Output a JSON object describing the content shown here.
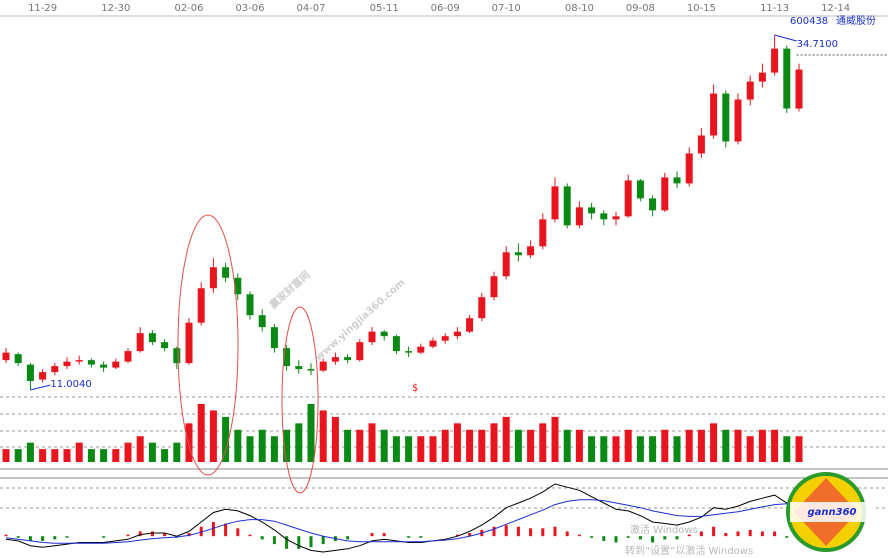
{
  "chart_data": {
    "type": "candlestick",
    "stock_code": "600438",
    "stock_name": "通威股份",
    "categories": [
      null,
      null,
      null,
      "11-29",
      null,
      null,
      null,
      null,
      null,
      "12-30",
      null,
      null,
      null,
      null,
      null,
      "02-06",
      null,
      null,
      null,
      null,
      "03-06",
      null,
      null,
      null,
      null,
      "04-07",
      null,
      null,
      null,
      null,
      null,
      "05-11",
      null,
      null,
      null,
      null,
      "06-09",
      null,
      null,
      null,
      null,
      "07-10",
      null,
      null,
      null,
      null,
      null,
      "08-10",
      null,
      null,
      null,
      null,
      "09-08",
      null,
      null,
      null,
      null,
      "10-15",
      null,
      null,
      null,
      null,
      null,
      "11-13",
      null,
      null,
      null,
      null,
      "12-14",
      null
    ],
    "candles": [
      [
        13.0,
        13.8,
        12.8,
        13.5
      ],
      [
        13.4,
        13.5,
        12.6,
        12.8
      ],
      [
        12.7,
        12.8,
        11.004,
        11.6
      ],
      [
        11.7,
        12.4,
        11.5,
        12.2
      ],
      [
        12.2,
        12.8,
        12.0,
        12.6
      ],
      [
        12.6,
        13.2,
        12.4,
        12.9
      ],
      [
        12.9,
        13.3,
        12.7,
        13.0
      ],
      [
        13.0,
        13.1,
        12.5,
        12.7
      ],
      [
        12.7,
        12.9,
        12.2,
        12.5
      ],
      [
        12.5,
        13.1,
        12.4,
        12.9
      ],
      [
        12.9,
        13.8,
        12.8,
        13.6
      ],
      [
        13.6,
        15.2,
        13.5,
        14.8
      ],
      [
        14.8,
        15.0,
        14.0,
        14.2
      ],
      [
        14.2,
        14.4,
        13.6,
        13.8
      ],
      [
        13.8,
        13.9,
        12.4,
        12.8
      ],
      [
        12.8,
        15.8,
        12.7,
        15.5
      ],
      [
        15.5,
        18.2,
        15.3,
        17.8
      ],
      [
        17.8,
        19.8,
        17.5,
        19.2
      ],
      [
        19.2,
        19.5,
        18.2,
        18.5
      ],
      [
        18.5,
        18.8,
        17.0,
        17.4
      ],
      [
        17.4,
        17.6,
        15.7,
        16.0
      ],
      [
        16.0,
        16.4,
        14.9,
        15.2
      ],
      [
        15.2,
        15.4,
        13.5,
        13.8
      ],
      [
        13.8,
        14.0,
        12.3,
        12.6
      ],
      [
        12.6,
        13.0,
        12.1,
        12.4
      ],
      [
        12.4,
        12.8,
        12.0,
        12.3
      ],
      [
        12.3,
        13.1,
        12.2,
        12.9
      ],
      [
        12.9,
        13.5,
        12.7,
        13.2
      ],
      [
        13.2,
        13.4,
        12.8,
        13.0
      ],
      [
        13.0,
        14.4,
        12.9,
        14.2
      ],
      [
        14.2,
        15.2,
        14.0,
        14.9
      ],
      [
        14.9,
        15.0,
        14.3,
        14.6
      ],
      [
        14.6,
        14.7,
        13.4,
        13.6
      ],
      [
        13.6,
        13.9,
        13.2,
        13.5
      ],
      [
        13.5,
        14.1,
        13.4,
        13.9
      ],
      [
        13.9,
        14.5,
        13.8,
        14.3
      ],
      [
        14.3,
        14.8,
        14.1,
        14.6
      ],
      [
        14.6,
        15.2,
        14.4,
        14.9
      ],
      [
        14.9,
        16.0,
        14.8,
        15.8
      ],
      [
        15.8,
        17.5,
        15.6,
        17.2
      ],
      [
        17.2,
        18.9,
        17.0,
        18.6
      ],
      [
        18.6,
        20.6,
        18.4,
        20.2
      ],
      [
        20.2,
        20.8,
        19.6,
        20.0
      ],
      [
        20.0,
        21.0,
        19.8,
        20.6
      ],
      [
        20.6,
        22.8,
        20.4,
        22.4
      ],
      [
        22.4,
        25.2,
        22.2,
        24.6
      ],
      [
        24.6,
        24.8,
        21.8,
        22.0
      ],
      [
        22.0,
        23.6,
        21.8,
        23.2
      ],
      [
        23.2,
        23.5,
        22.4,
        22.8
      ],
      [
        22.8,
        23.0,
        22.0,
        22.4
      ],
      [
        22.4,
        22.9,
        22.0,
        22.6
      ],
      [
        22.6,
        25.4,
        22.5,
        25.0
      ],
      [
        25.0,
        25.1,
        23.6,
        23.8
      ],
      [
        23.8,
        24.0,
        22.6,
        23.0
      ],
      [
        23.0,
        25.5,
        22.9,
        25.2
      ],
      [
        25.2,
        25.6,
        24.5,
        24.8
      ],
      [
        24.8,
        27.2,
        24.6,
        26.8
      ],
      [
        26.8,
        28.5,
        26.5,
        28.0
      ],
      [
        28.0,
        31.4,
        27.8,
        30.8
      ],
      [
        30.8,
        31.0,
        27.2,
        27.6
      ],
      [
        27.6,
        30.8,
        27.4,
        30.4
      ],
      [
        30.4,
        32.0,
        30.0,
        31.6
      ],
      [
        31.6,
        32.8,
        31.2,
        32.2
      ],
      [
        32.2,
        34.71,
        32.0,
        33.8
      ],
      [
        33.8,
        34.0,
        29.5,
        29.8
      ],
      [
        29.8,
        32.8,
        29.6,
        32.4
      ],
      null,
      null,
      null,
      null
    ],
    "volumes": [
      2,
      2,
      3,
      2,
      2,
      2,
      3,
      2,
      2,
      2,
      3,
      4,
      3,
      2,
      3,
      6,
      9,
      8,
      7,
      5,
      4,
      5,
      4,
      5,
      6,
      9,
      8,
      7,
      5,
      5,
      6,
      5,
      4,
      4,
      4,
      4,
      5,
      6,
      5,
      5,
      6,
      7,
      5,
      5,
      6,
      7,
      5,
      5,
      4,
      4,
      4,
      5,
      4,
      4,
      5,
      4,
      5,
      5,
      6,
      5,
      5,
      4,
      5,
      5,
      4,
      4,
      null,
      null,
      null,
      null
    ],
    "macd": [
      0.1,
      -0.1,
      -0.3,
      -0.3,
      -0.2,
      -0.1,
      0,
      0,
      -0.1,
      0,
      0.1,
      0.3,
      0.3,
      0.2,
      -0.1,
      0.2,
      0.6,
      0.9,
      0.8,
      0.5,
      0.1,
      -0.2,
      -0.5,
      -0.8,
      -0.8,
      -0.7,
      -0.5,
      -0.3,
      -0.2,
      0,
      0.2,
      0.2,
      0,
      -0.1,
      -0.1,
      0,
      0,
      0.1,
      0.2,
      0.4,
      0.6,
      0.7,
      0.6,
      0.5,
      0.5,
      0.6,
      0.3,
      0.1,
      -0.1,
      -0.3,
      -0.4,
      -0.1,
      -0.2,
      -0.4,
      -0.2,
      -0.2,
      0.1,
      0.3,
      0.6,
      0.2,
      0.3,
      0.4,
      0.3,
      0.3,
      -0.1,
      -0.1,
      null,
      null,
      null,
      null
    ],
    "dif": [
      -0.2,
      -0.3,
      -0.6,
      -0.7,
      -0.6,
      -0.5,
      -0.4,
      -0.4,
      -0.4,
      -0.3,
      -0.2,
      0.1,
      0.2,
      0.2,
      0,
      0.3,
      0.9,
      1.5,
      1.7,
      1.6,
      1.3,
      0.9,
      0.4,
      -0.2,
      -0.6,
      -0.9,
      -1.0,
      -0.9,
      -0.8,
      -0.6,
      -0.3,
      -0.2,
      -0.3,
      -0.4,
      -0.4,
      -0.3,
      -0.2,
      0,
      0.3,
      0.7,
      1.2,
      1.8,
      2.1,
      2.4,
      2.8,
      3.3,
      3.1,
      2.9,
      2.5,
      2.1,
      1.7,
      1.6,
      1.3,
      0.9,
      0.8,
      0.7,
      0.9,
      1.2,
      1.8,
      1.7,
      1.9,
      2.2,
      2.4,
      2.6,
      2.1,
      1.9,
      null,
      null,
      null,
      null
    ],
    "dea": [
      -0.1,
      -0.2,
      -0.3,
      -0.4,
      -0.45,
      -0.45,
      -0.45,
      -0.45,
      -0.45,
      -0.4,
      -0.35,
      -0.25,
      -0.15,
      -0.1,
      -0.05,
      0.05,
      0.25,
      0.5,
      0.75,
      0.95,
      1.05,
      1.05,
      0.95,
      0.7,
      0.45,
      0.2,
      0,
      -0.15,
      -0.3,
      -0.35,
      -0.35,
      -0.35,
      -0.35,
      -0.35,
      -0.35,
      -0.3,
      -0.25,
      -0.15,
      0,
      0.2,
      0.45,
      0.75,
      1.05,
      1.35,
      1.65,
      2.0,
      2.2,
      2.3,
      2.3,
      2.25,
      2.1,
      1.95,
      1.8,
      1.6,
      1.45,
      1.3,
      1.25,
      1.25,
      1.35,
      1.45,
      1.55,
      1.7,
      1.85,
      2.0,
      2.05,
      2.0,
      null,
      null,
      null,
      null
    ],
    "up_color": "#e8141e",
    "down_color": "#0a8a14",
    "dif_color": "#000000",
    "dea_color": "#1a2fd0",
    "high_marker": {
      "value": 34.71,
      "label": "34.7100"
    },
    "low_marker": {
      "value": 11.004,
      "label": "11.0040"
    },
    "signal_mark": "$",
    "watermark_title": "赢家财富网",
    "watermark_url": "www.yingjia360.com",
    "logo": "gann360",
    "os_notice_1": "激活 Windows",
    "os_notice_2": "转到“设置”以激活 Windows"
  }
}
